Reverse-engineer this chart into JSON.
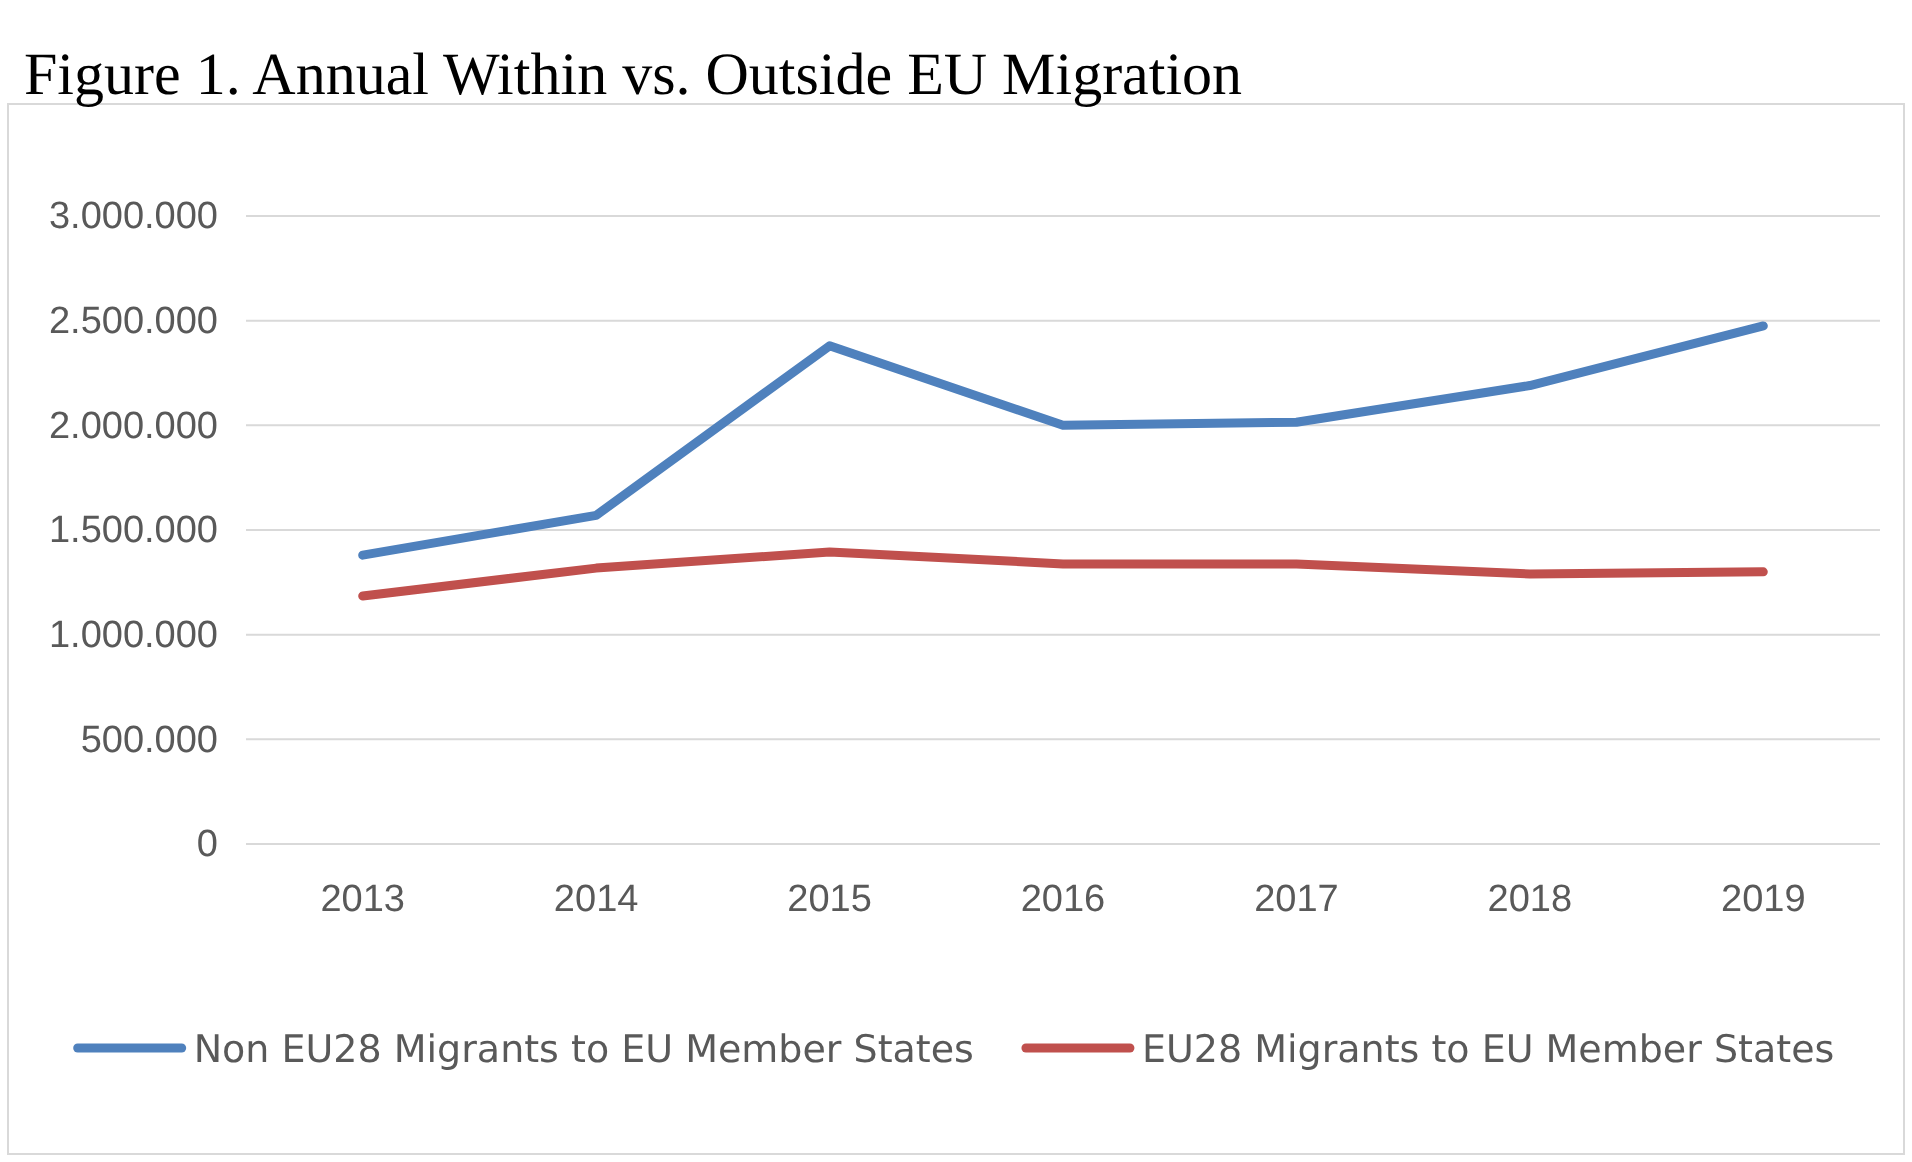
{
  "chart_data": {
    "type": "line",
    "title": "Figure 1. Annual Within vs. Outside EU Migration",
    "categories": [
      "2013",
      "2014",
      "2015",
      "2016",
      "2017",
      "2018",
      "2019"
    ],
    "series": [
      {
        "name": "Non EU28 Migrants to EU Member States",
        "color": "#4f81bd",
        "values": [
          1380000,
          1570000,
          2380000,
          2000000,
          2015000,
          2190000,
          2475000
        ]
      },
      {
        "name": "EU28 Migrants to EU Member States",
        "color": "#c0504d",
        "values": [
          1185000,
          1318000,
          1395000,
          1338000,
          1338000,
          1290000,
          1300000
        ]
      }
    ],
    "ylim": [
      0,
      3000000
    ],
    "yticks": [
      {
        "value": 0,
        "label": "0"
      },
      {
        "value": 500000,
        "label": "500.000"
      },
      {
        "value": 1000000,
        "label": "1.000.000"
      },
      {
        "value": 1500000,
        "label": "1.500.000"
      },
      {
        "value": 2000000,
        "label": "2.000.000"
      },
      {
        "value": 2500000,
        "label": "2.500.000"
      },
      {
        "value": 3000000,
        "label": "3.000.000"
      }
    ],
    "grid": "y",
    "legend": "bottom",
    "marker": "none",
    "line_style": "solid"
  }
}
